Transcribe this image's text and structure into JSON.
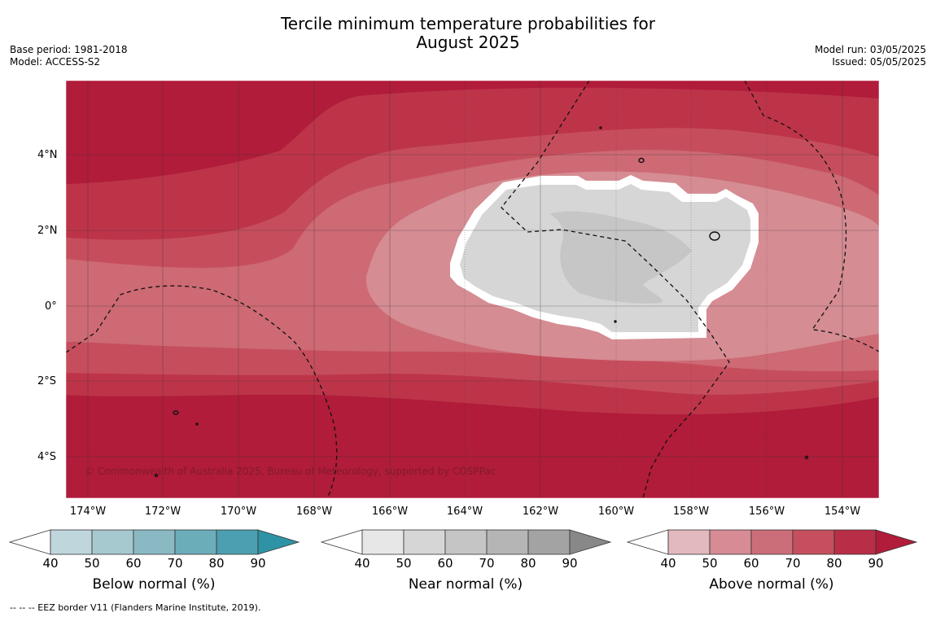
{
  "title_line1": "Tercile minimum temperature probabilities for",
  "title_line2": "August 2025",
  "base_period": "Base period: 1981-2018",
  "model": "Model: ACCESS-S2",
  "model_run": "Model run: 03/05/2025",
  "issued": "Issued: 05/05/2025",
  "copyright": "© Commonwealth of Australia 2025, Bureau of Meteorology, supported by COSPPac",
  "footnote": "-- -- -- EEZ border V11 (Flanders Marine Institute, 2019).",
  "lat_labels": [
    "4°N",
    "2°N",
    "0°",
    "2°S",
    "4°S"
  ],
  "lon_labels": [
    "174°W",
    "172°W",
    "170°W",
    "168°W",
    "166°W",
    "164°W",
    "162°W",
    "160°W",
    "158°W",
    "156°W",
    "154°W"
  ],
  "colorbars": [
    {
      "title": "Below normal (%)",
      "ticks": [
        "40",
        "50",
        "60",
        "70",
        "80",
        "90"
      ],
      "colors": [
        "#bfd6dc",
        "#a6c8cf",
        "#8ab9c4",
        "#6cadba",
        "#4b9fb0",
        "#2f93a6"
      ]
    },
    {
      "title": "Near normal (%)",
      "ticks": [
        "40",
        "50",
        "60",
        "70",
        "80",
        "90"
      ],
      "colors": [
        "#e7e7e7",
        "#d6d6d6",
        "#c5c5c5",
        "#b5b5b5",
        "#a3a3a3",
        "#888888"
      ]
    },
    {
      "title": "Above normal (%)",
      "ticks": [
        "40",
        "50",
        "60",
        "70",
        "80",
        "90"
      ],
      "colors": [
        "#e2b9bf",
        "#d68b95",
        "#cc6e79",
        "#c54f5e",
        "#b82e46",
        "#b01c3a"
      ]
    }
  ],
  "colors": {
    "above_90": "#b01c3a",
    "above_80": "#bd3449",
    "above_70": "#c64e5c",
    "above_60": "#cd6a74",
    "above_50": "#d58c93",
    "near_50": "#d6d6d6",
    "near_60": "#c6c6c6"
  }
}
